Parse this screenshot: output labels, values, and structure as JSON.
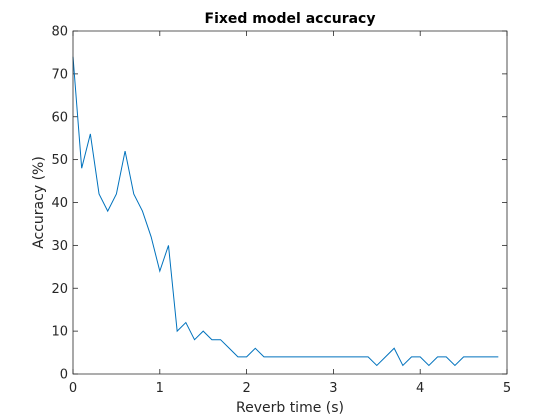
{
  "chart_data": {
    "type": "line",
    "title": "Fixed model accuracy",
    "xlabel": "Reverb time (s)",
    "ylabel": "Accuracy (%)",
    "xlim": [
      0,
      5
    ],
    "ylim": [
      0,
      80
    ],
    "xticks": [
      0,
      1,
      2,
      3,
      4,
      5
    ],
    "yticks": [
      0,
      10,
      20,
      30,
      40,
      50,
      60,
      70,
      80
    ],
    "grid": false,
    "series_color": "#0072BD",
    "series": [
      {
        "x": [
          0,
          0.1,
          0.2,
          0.3,
          0.4,
          0.5,
          0.6,
          0.7,
          0.8,
          0.9,
          1.0,
          1.1,
          1.2,
          1.3,
          1.4,
          1.5,
          1.6,
          1.7,
          1.8,
          1.9,
          2.0,
          2.1,
          2.2,
          2.3,
          2.4,
          2.5,
          2.6,
          2.7,
          2.8,
          2.9,
          3.0,
          3.1,
          3.2,
          3.3,
          3.4,
          3.5,
          3.6,
          3.7,
          3.8,
          3.9,
          4.0,
          4.1,
          4.2,
          4.3,
          4.4,
          4.5,
          4.6,
          4.7,
          4.8,
          4.9
        ],
        "y": [
          74,
          48,
          56,
          42,
          38,
          42,
          52,
          42,
          38,
          32,
          24,
          30,
          10,
          12,
          8,
          10,
          8,
          8,
          6,
          4,
          4,
          6,
          4,
          4,
          4,
          4,
          4,
          4,
          4,
          4,
          4,
          4,
          4,
          4,
          4,
          2,
          4,
          6,
          2,
          4,
          4,
          2,
          4,
          4,
          2,
          4,
          4,
          4,
          4,
          4
        ]
      }
    ]
  }
}
